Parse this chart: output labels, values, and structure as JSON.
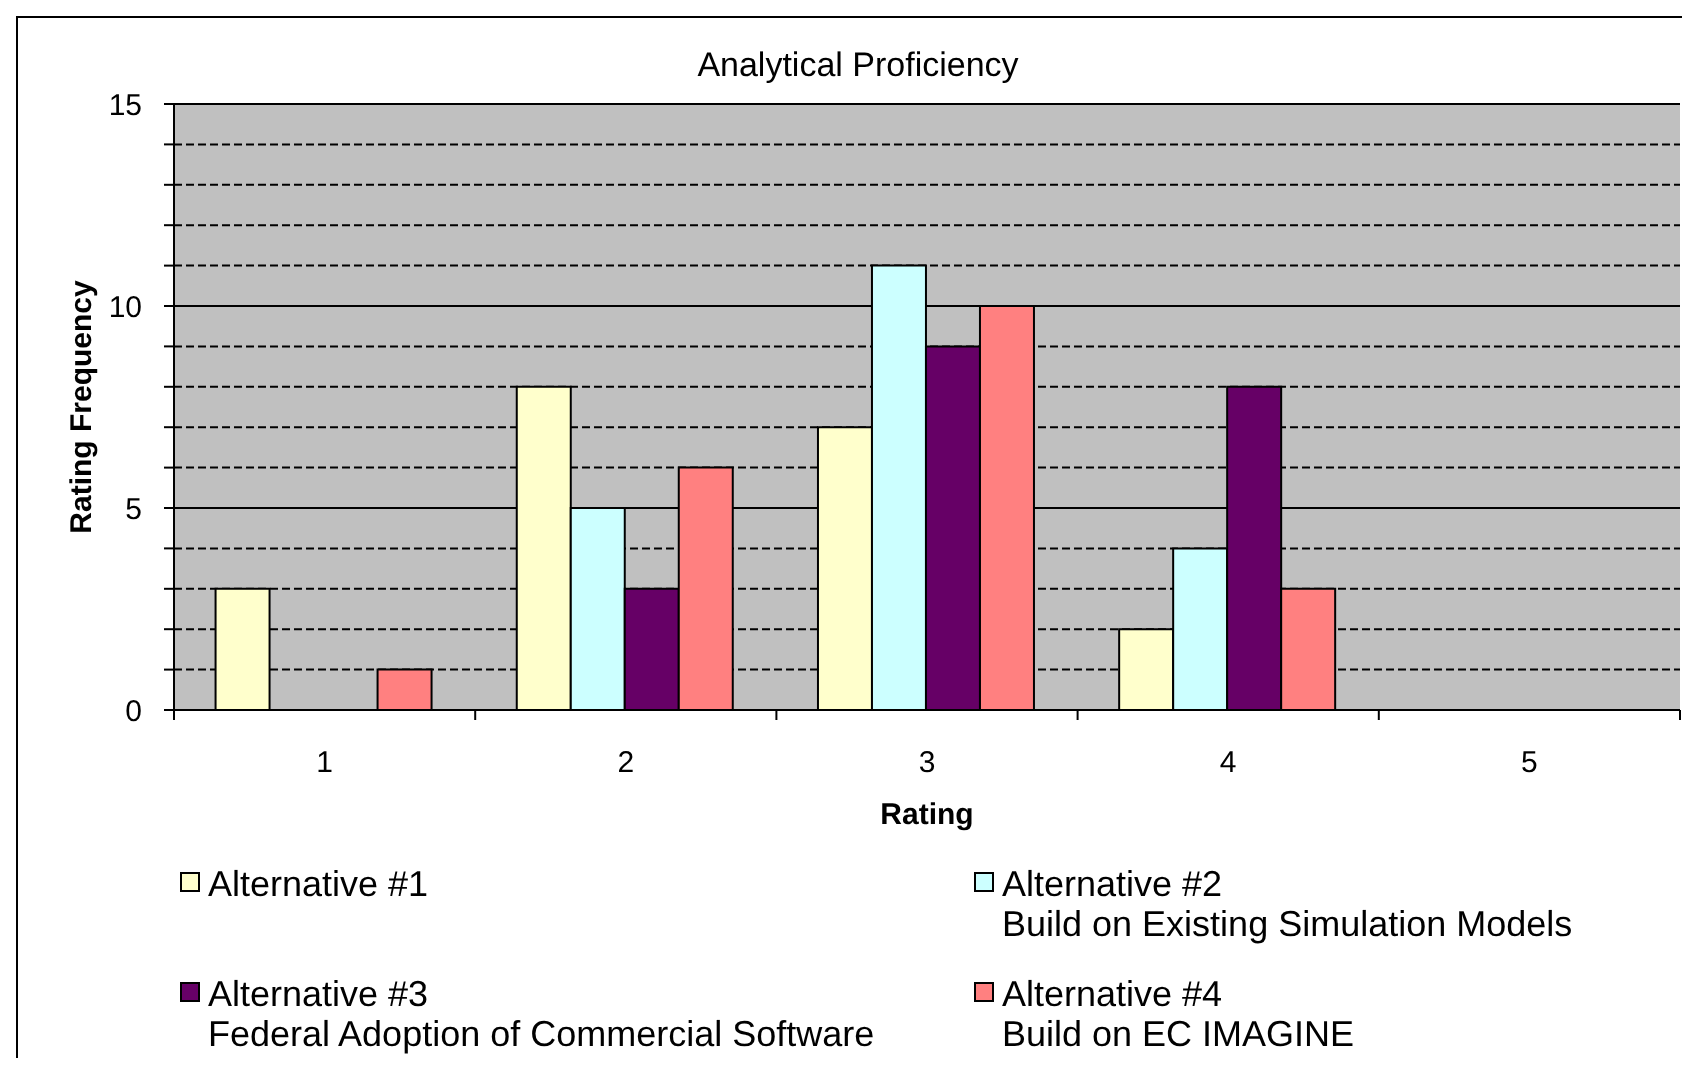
{
  "chart_data": {
    "type": "bar",
    "title": "Analytical Proficiency",
    "xlabel": "Rating",
    "ylabel": "Rating Frequency",
    "categories": [
      "1",
      "2",
      "3",
      "4",
      "5"
    ],
    "series": [
      {
        "name": "Alternative #1",
        "color": "#ffffcc",
        "values": [
          3,
          8,
          7,
          2,
          0
        ]
      },
      {
        "name": "Alternative #2\nBuild on Existing Simulation Models",
        "color": "#ccffff",
        "values": [
          0,
          5,
          11,
          4,
          0
        ]
      },
      {
        "name": "Alternative #3\nFederal Adoption of Commercial Software",
        "color": "#660066",
        "values": [
          0,
          3,
          9,
          8,
          0
        ]
      },
      {
        "name": "Alternative #4\nBuild on EC IMAGINE",
        "color": "#ff8080",
        "values": [
          1,
          6,
          10,
          3,
          0
        ]
      }
    ],
    "ylim": [
      0,
      15
    ],
    "yticks": [
      0,
      {
        "value": 1,
        "label": null
      },
      {
        "value": 2,
        "label": null
      },
      {
        "value": 3,
        "label": null
      },
      {
        "value": 4,
        "label": null
      },
      5,
      {
        "value": 6,
        "label": null
      },
      {
        "value": 7,
        "label": null
      },
      {
        "value": 8,
        "label": null
      },
      {
        "value": 9,
        "label": null
      },
      10,
      {
        "value": 11,
        "label": null
      },
      {
        "value": 12,
        "label": null
      },
      {
        "value": 13,
        "label": null
      },
      {
        "value": 14,
        "label": null
      },
      15
    ],
    "grid": "y",
    "legend": "bottom"
  }
}
